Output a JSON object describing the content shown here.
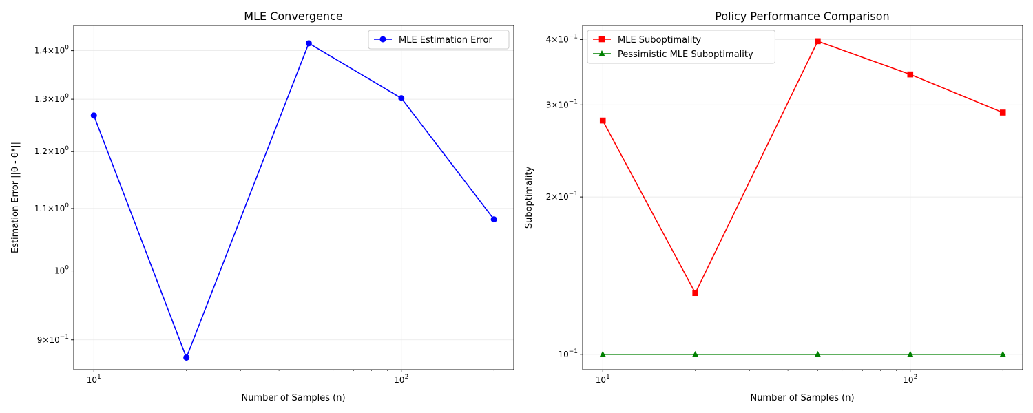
{
  "chart_data": [
    {
      "type": "line",
      "title": "MLE Convergence",
      "xlabel": "Number of Samples (n)",
      "ylabel": "Estimation Error ||θ - θ*||",
      "xscale": "log",
      "yscale": "log",
      "xlim": [
        8.6,
        232
      ],
      "ylim": [
        0.86,
        1.455
      ],
      "grid": true,
      "legend": "top-right",
      "x": [
        10,
        20,
        50,
        100,
        200
      ],
      "xticks": [
        {
          "value": 10,
          "base": "10",
          "exp": "1"
        },
        {
          "value": 100,
          "base": "10",
          "exp": "2"
        }
      ],
      "yticks": [
        {
          "value": 0.9,
          "mant": "9",
          "base": "10",
          "exp": "−1"
        },
        {
          "value": 1.0,
          "mant": "",
          "base": "10",
          "exp": "0"
        },
        {
          "value": 1.1,
          "mant": "1.1",
          "base": "10",
          "exp": "0"
        },
        {
          "value": 1.2,
          "mant": "1.2",
          "base": "10",
          "exp": "0"
        },
        {
          "value": 1.3,
          "mant": "1.3",
          "base": "10",
          "exp": "0"
        },
        {
          "value": 1.4,
          "mant": "1.4",
          "base": "10",
          "exp": "0"
        }
      ],
      "series": [
        {
          "name": "MLE Estimation Error",
          "color": "#0000ff",
          "marker": "circle",
          "values": [
            1.268,
            0.876,
            1.416,
            1.302,
            1.082
          ]
        }
      ]
    },
    {
      "type": "line",
      "title": "Policy Performance Comparison",
      "xlabel": "Number of Samples (n)",
      "ylabel": "Suboptimality",
      "xscale": "log",
      "yscale": "log",
      "xlim": [
        8.6,
        232
      ],
      "ylim": [
        0.0935,
        0.4255
      ],
      "grid": true,
      "legend": "top-left",
      "x": [
        10,
        20,
        50,
        100,
        200
      ],
      "xticks": [
        {
          "value": 10,
          "base": "10",
          "exp": "1"
        },
        {
          "value": 100,
          "base": "10",
          "exp": "2"
        }
      ],
      "yticks": [
        {
          "value": 0.1,
          "mant": "",
          "base": "10",
          "exp": "−1"
        },
        {
          "value": 0.2,
          "mant": "2",
          "base": "10",
          "exp": "−1"
        },
        {
          "value": 0.3,
          "mant": "3",
          "base": "10",
          "exp": "−1"
        },
        {
          "value": 0.4,
          "mant": "4",
          "base": "10",
          "exp": "−1"
        }
      ],
      "series": [
        {
          "name": "MLE Suboptimality",
          "color": "#ff0000",
          "marker": "square",
          "values": [
            0.28,
            0.131,
            0.397,
            0.343,
            0.29
          ]
        },
        {
          "name": "Pessimistic MLE Suboptimality",
          "color": "#008000",
          "marker": "triangle",
          "values": [
            0.1,
            0.1,
            0.1,
            0.1,
            0.1
          ]
        }
      ]
    }
  ]
}
